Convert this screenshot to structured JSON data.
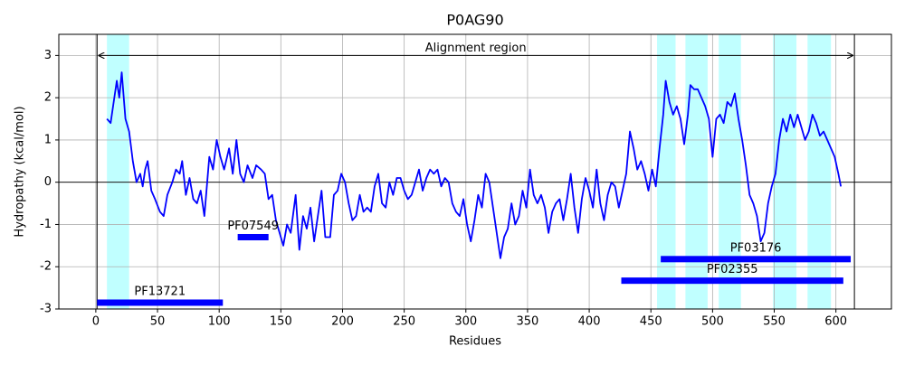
{
  "chart_data": {
    "type": "line",
    "title": "P0AG90",
    "x_label": "Residues",
    "y_label": "Hydropathy (kcal/mol)",
    "xlim": [
      -30,
      645
    ],
    "ylim": [
      -3,
      3.5
    ],
    "xticks": [
      0,
      50,
      100,
      150,
      200,
      250,
      300,
      350,
      400,
      450,
      500,
      550,
      600
    ],
    "yticks": [
      -3,
      -2,
      -1,
      0,
      1,
      2,
      3
    ],
    "grid": true,
    "x": [
      9,
      12,
      15,
      17,
      19,
      21,
      24,
      27,
      30,
      33,
      36,
      38,
      40,
      42,
      45,
      48,
      52,
      55,
      58,
      62,
      65,
      68,
      70,
      73,
      76,
      79,
      82,
      85,
      88,
      92,
      95,
      98,
      101,
      104,
      108,
      111,
      114,
      117,
      120,
      123,
      127,
      130,
      134,
      137,
      140,
      143,
      146,
      149,
      152,
      155,
      158,
      162,
      165,
      168,
      171,
      174,
      177,
      180,
      183,
      186,
      190,
      193,
      196,
      199,
      202,
      205,
      208,
      211,
      214,
      217,
      220,
      223,
      226,
      229,
      232,
      235,
      238,
      241,
      244,
      247,
      250,
      253,
      256,
      259,
      262,
      265,
      268,
      271,
      274,
      277,
      280,
      283,
      286,
      289,
      292,
      295,
      298,
      301,
      304,
      307,
      310,
      313,
      316,
      319,
      322,
      325,
      328,
      331,
      334,
      337,
      340,
      343,
      346,
      349,
      352,
      355,
      358,
      361,
      364,
      367,
      370,
      373,
      376,
      379,
      382,
      385,
      388,
      391,
      394,
      397,
      400,
      403,
      406,
      409,
      412,
      415,
      418,
      421,
      424,
      427,
      430,
      433,
      436,
      439,
      442,
      445,
      448,
      451,
      454,
      457,
      460,
      462,
      465,
      468,
      471,
      474,
      477,
      480,
      482,
      485,
      488,
      491,
      494,
      497,
      500,
      503,
      506,
      509,
      512,
      515,
      518,
      521,
      524,
      527,
      530,
      533,
      536,
      539,
      542,
      545,
      548,
      551,
      554,
      557,
      560,
      563,
      566,
      569,
      572,
      575,
      578,
      581,
      584,
      587,
      590,
      593,
      596,
      599,
      602,
      604
    ],
    "series": [
      {
        "name": "Hydropathy",
        "color": "#0000ff",
        "values": [
          1.5,
          1.4,
          2.0,
          2.4,
          2.0,
          2.6,
          1.5,
          1.2,
          0.5,
          0.0,
          0.2,
          -0.1,
          0.3,
          0.5,
          -0.2,
          -0.4,
          -0.7,
          -0.8,
          -0.3,
          0.0,
          0.3,
          0.2,
          0.5,
          -0.3,
          0.1,
          -0.4,
          -0.5,
          -0.2,
          -0.8,
          0.6,
          0.3,
          1.0,
          0.6,
          0.3,
          0.8,
          0.2,
          1.0,
          0.2,
          0.0,
          0.4,
          0.1,
          0.4,
          0.3,
          0.2,
          -0.4,
          -0.3,
          -0.9,
          -1.2,
          -1.5,
          -1.0,
          -1.2,
          -0.3,
          -1.6,
          -0.8,
          -1.1,
          -0.6,
          -1.4,
          -0.8,
          -0.2,
          -1.3,
          -1.3,
          -0.3,
          -0.2,
          0.2,
          0.0,
          -0.5,
          -0.9,
          -0.8,
          -0.3,
          -0.7,
          -0.6,
          -0.7,
          -0.1,
          0.2,
          -0.5,
          -0.6,
          0.0,
          -0.3,
          0.1,
          0.1,
          -0.2,
          -0.4,
          -0.3,
          0.0,
          0.3,
          -0.2,
          0.1,
          0.3,
          0.2,
          0.3,
          -0.1,
          0.1,
          0.0,
          -0.5,
          -0.7,
          -0.8,
          -0.4,
          -1.0,
          -1.4,
          -0.9,
          -0.3,
          -0.6,
          0.2,
          0.0,
          -0.6,
          -1.2,
          -1.8,
          -1.3,
          -1.1,
          -0.5,
          -1.0,
          -0.8,
          -0.2,
          -0.6,
          0.3,
          -0.3,
          -0.5,
          -0.3,
          -0.6,
          -1.2,
          -0.7,
          -0.5,
          -0.4,
          -0.9,
          -0.4,
          0.2,
          -0.6,
          -1.2,
          -0.4,
          0.1,
          -0.2,
          -0.6,
          0.3,
          -0.5,
          -0.9,
          -0.3,
          0.0,
          -0.1,
          -0.6,
          -0.2,
          0.2,
          1.2,
          0.8,
          0.3,
          0.5,
          0.2,
          -0.2,
          0.3,
          -0.1,
          0.8,
          1.6,
          2.4,
          1.9,
          1.6,
          1.8,
          1.5,
          0.9,
          1.6,
          2.3,
          2.2,
          2.2,
          2.0,
          1.8,
          1.5,
          0.6,
          1.5,
          1.6,
          1.4,
          1.9,
          1.8,
          2.1,
          1.5,
          1.0,
          0.4,
          -0.3,
          -0.5,
          -0.8,
          -1.4,
          -1.2,
          -0.5,
          -0.1,
          0.2,
          1.0,
          1.5,
          1.2,
          1.6,
          1.3,
          1.6,
          1.3,
          1.0,
          1.2,
          1.6,
          1.4,
          1.1,
          1.2,
          1.0,
          0.8,
          0.6,
          0.2,
          -0.1
        ]
      }
    ],
    "highlight_color": "#c0ffff",
    "highlight_regions": [
      {
        "start": 9,
        "end": 27
      },
      {
        "start": 455,
        "end": 470
      },
      {
        "start": 478,
        "end": 496
      },
      {
        "start": 505,
        "end": 523
      },
      {
        "start": 549,
        "end": 568
      },
      {
        "start": 577,
        "end": 596
      }
    ],
    "alignment_region": {
      "label": "Alignment region",
      "start": 1,
      "end": 615,
      "y": 3
    },
    "domain_color": "#0000ff",
    "domains": [
      {
        "name": "PF13721",
        "start": 1,
        "end": 103,
        "y": -2.85
      },
      {
        "name": "PF07549",
        "start": 115,
        "end": 140,
        "y": -1.3
      },
      {
        "name": "PF03176",
        "start": 458,
        "end": 612,
        "y": -1.82
      },
      {
        "name": "PF02355",
        "start": 426,
        "end": 606,
        "y": -2.33
      }
    ]
  }
}
